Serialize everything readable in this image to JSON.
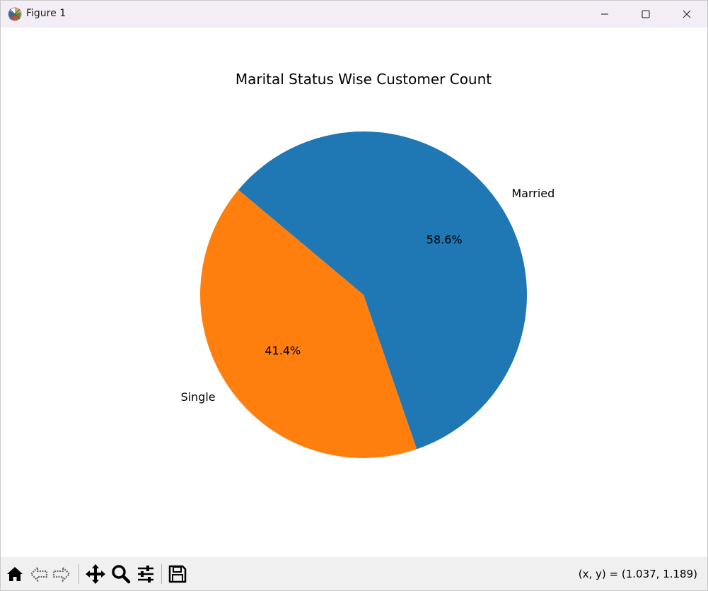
{
  "window": {
    "title": "Figure 1",
    "controls": {
      "minimize": "minimize",
      "maximize": "maximize",
      "close": "close"
    }
  },
  "toolbar": {
    "buttons": [
      {
        "name": "home",
        "icon": "home-icon"
      },
      {
        "name": "back",
        "icon": "back-arrow-icon"
      },
      {
        "name": "forward",
        "icon": "forward-arrow-icon"
      },
      {
        "name": "pan",
        "icon": "move-icon"
      },
      {
        "name": "zoom",
        "icon": "zoom-icon"
      },
      {
        "name": "configure-subplots",
        "icon": "sliders-icon"
      },
      {
        "name": "save",
        "icon": "save-icon"
      }
    ],
    "coords": "(x, y) = (1.037, 1.189)"
  },
  "chart_data": {
    "type": "pie",
    "title": "Marital Status Wise Customer Count",
    "slices": [
      {
        "label": "Single",
        "value": 41.4,
        "pct_label": "41.4%",
        "color": "#ff7f0e"
      },
      {
        "label": "Married",
        "value": 58.6,
        "pct_label": "58.6%",
        "color": "#1f77b4"
      }
    ],
    "start_angle": 140,
    "counterclockwise": true,
    "autopct": "%1.1f%%",
    "legend": "none"
  }
}
